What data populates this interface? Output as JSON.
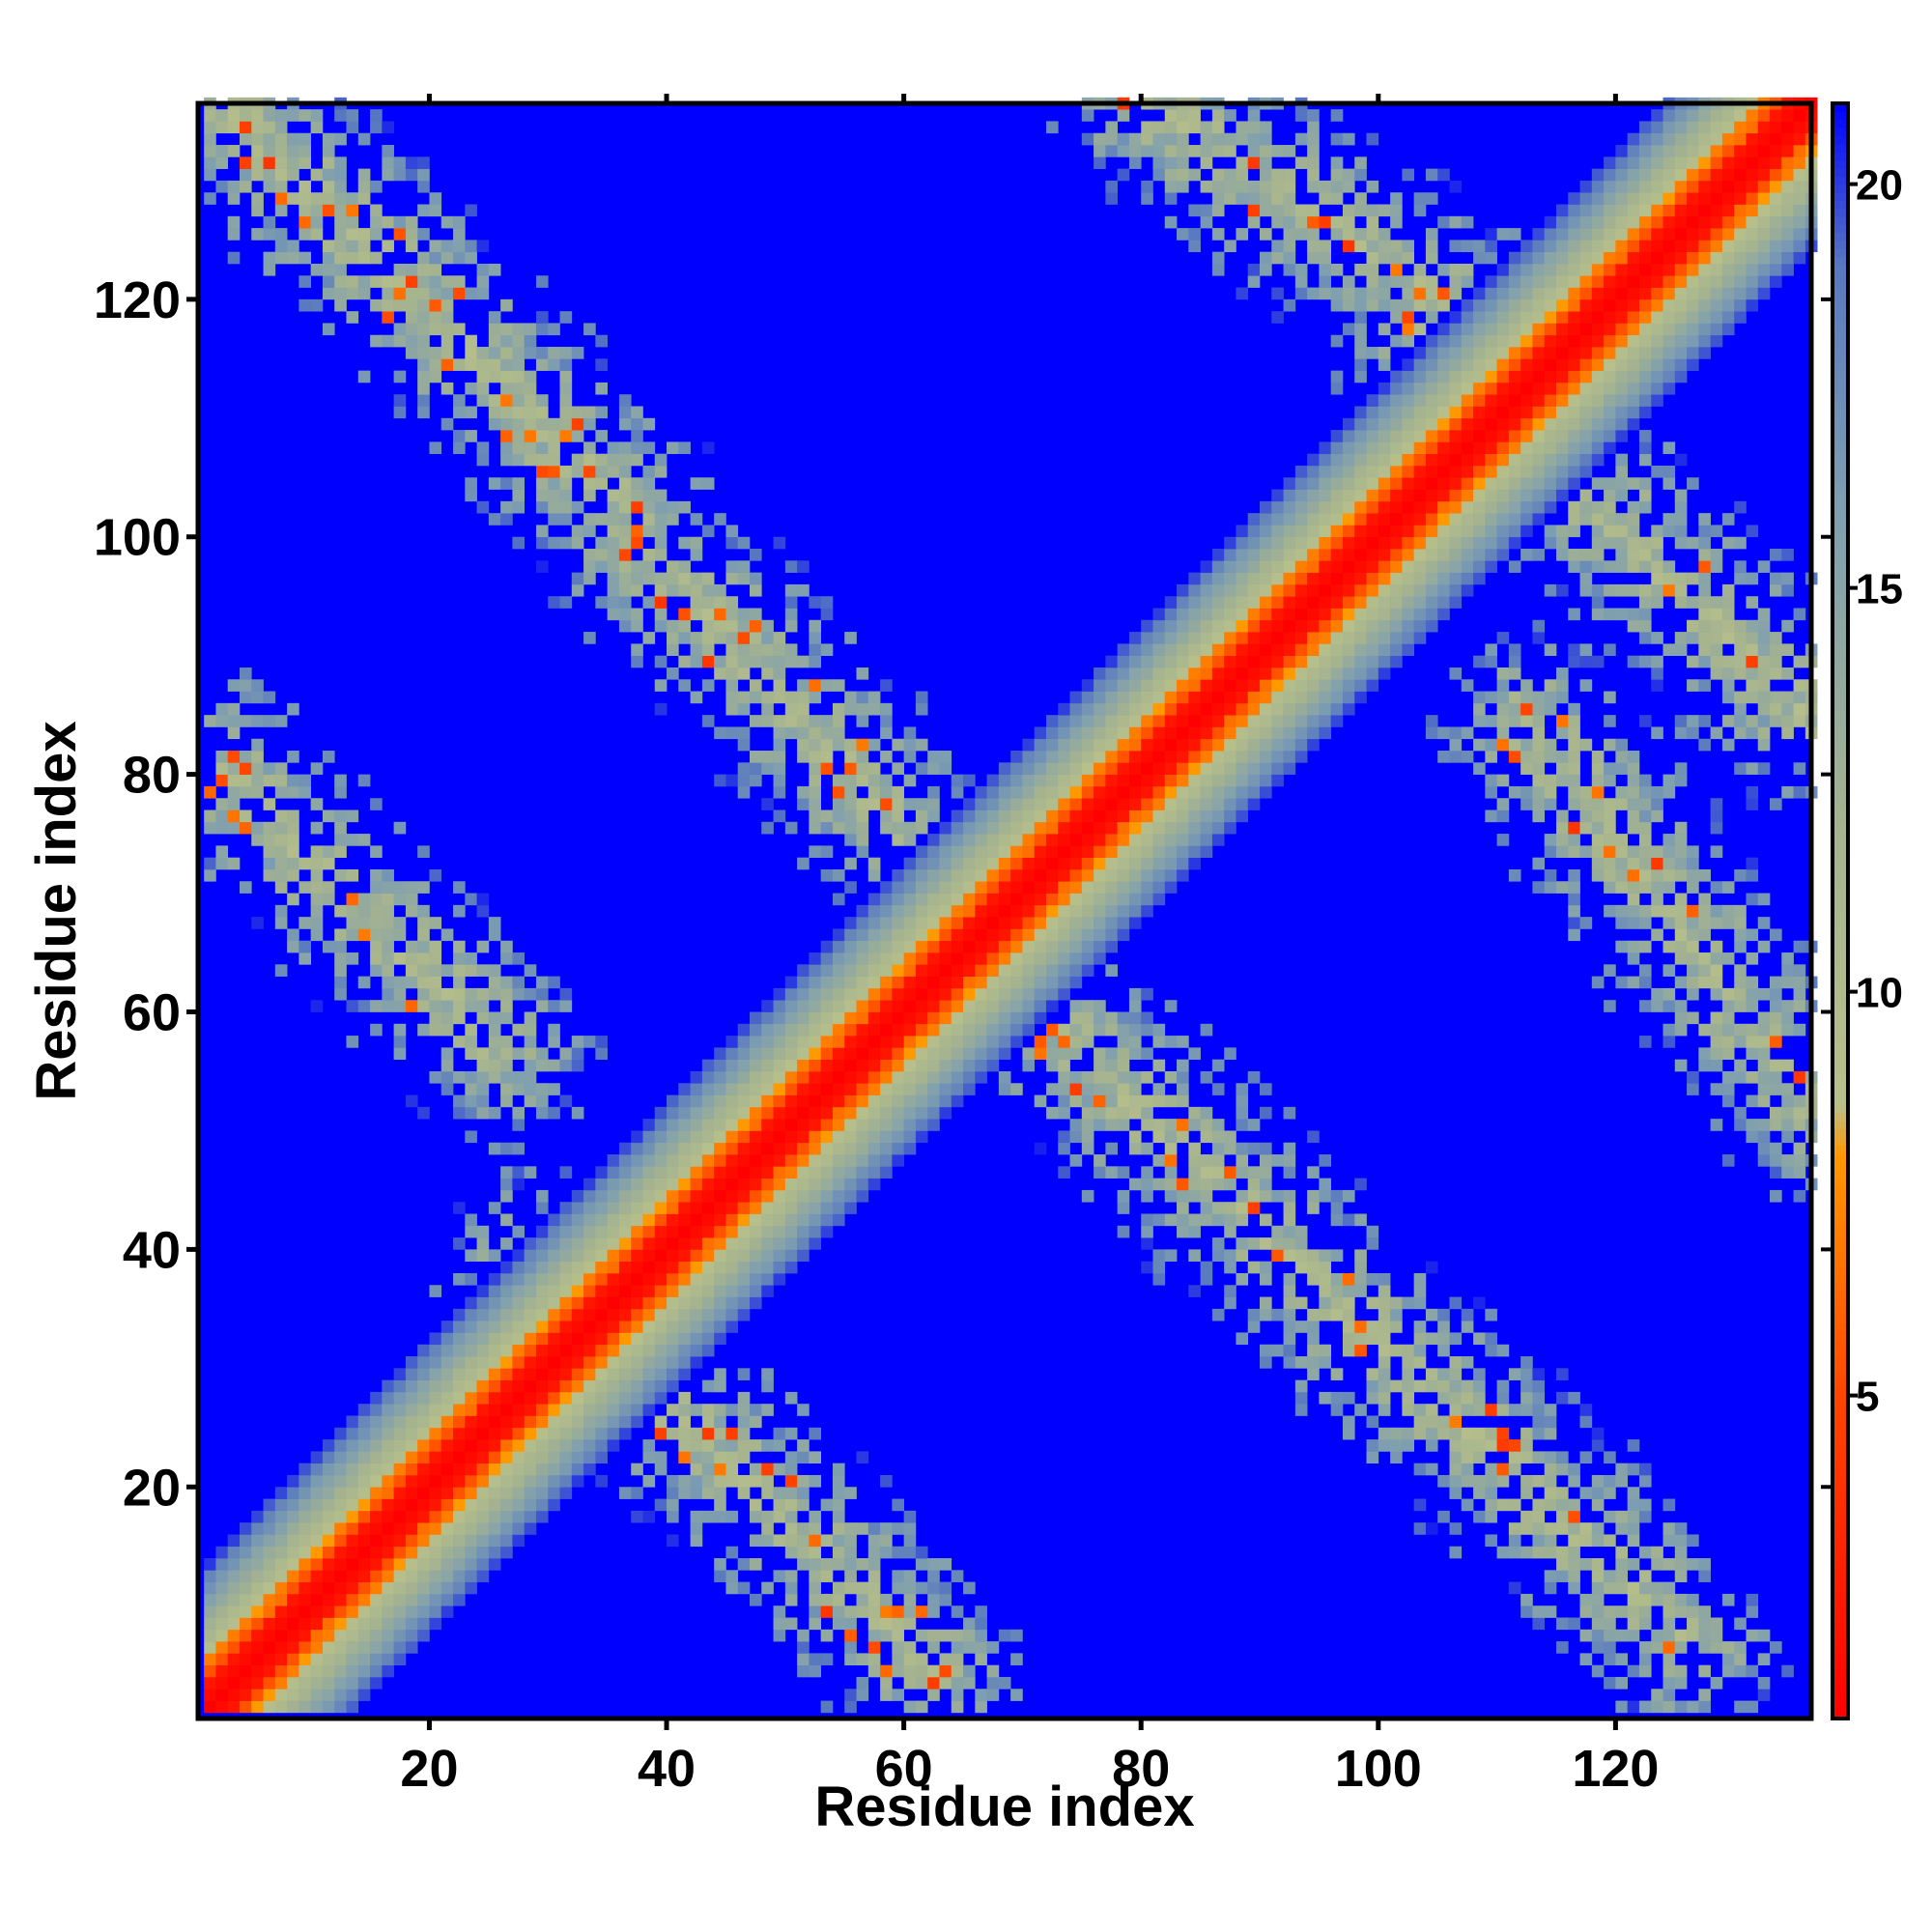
{
  "chart_data": {
    "type": "heatmap",
    "title": "",
    "xlabel": "Residue index",
    "ylabel": "Residue index",
    "n_residues": 136,
    "xlim": [
      1,
      136
    ],
    "ylim": [
      1,
      136
    ],
    "x_ticks": [
      20,
      40,
      60,
      80,
      100,
      120
    ],
    "y_ticks": [
      20,
      40,
      60,
      80,
      100,
      120
    ],
    "colorbar": {
      "ticks": [
        5,
        10,
        15,
        20
      ],
      "range": [
        1,
        21
      ],
      "stops": [
        {
          "value": 1,
          "color": "#ff0000"
        },
        {
          "value": 5,
          "color": "#ff4500"
        },
        {
          "value": 8,
          "color": "#ff9900"
        },
        {
          "value": 8.6,
          "color": "#b8c08a"
        },
        {
          "value": 12,
          "color": "#a5b38f"
        },
        {
          "value": 16,
          "color": "#7f9fb0"
        },
        {
          "value": 19,
          "color": "#5878c0"
        },
        {
          "value": 21,
          "color": "#0000ff"
        }
      ]
    },
    "structure": {
      "description_of_values": "pairwise residue distance (contact map)",
      "diagonal_band": {
        "core_max": 2,
        "inner_max": 5,
        "outer_max": 13
      },
      "contact_bands": [
        {
          "i": [
            2,
            36
          ],
          "j": [
            136,
            102
          ],
          "center_value": 9
        },
        {
          "i": [
            2,
            26
          ],
          "j": [
            80,
            56
          ],
          "center_value": 10
        },
        {
          "i": [
            28,
            62
          ],
          "j": [
            38,
            4
          ],
          "center_value": 10
        },
        {
          "i": [
            36,
            66
          ],
          "j": [
            100,
            68
          ],
          "center_value": 10
        },
        {
          "i": [
            66,
            126
          ],
          "j": [
            64,
            6
          ],
          "center_value": 9
        },
        {
          "i": [
            104,
            136
          ],
          "j": [
            116,
            84
          ],
          "center_value": 9
        },
        {
          "i": [
            80,
            116
          ],
          "j": [
            136,
            112
          ],
          "center_value": 10
        },
        {
          "i": [
            112,
            136
          ],
          "j": [
            84,
            52
          ],
          "center_value": 11
        }
      ]
    }
  }
}
